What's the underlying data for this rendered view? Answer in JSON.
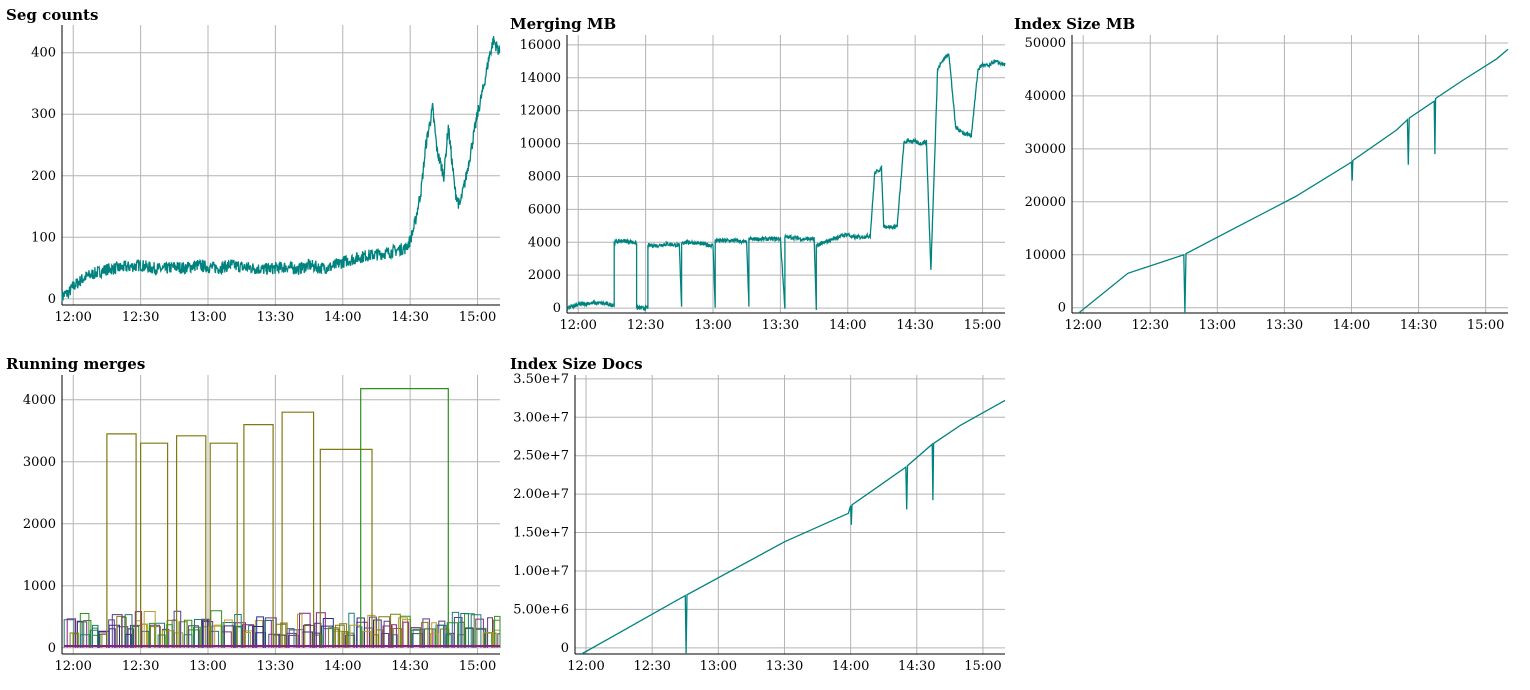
{
  "colors": {
    "series": "#00837f",
    "grid": "#b4b4b4",
    "axis": "#000000",
    "merge_palette": [
      "#7f7a10",
      "#2e8f1f",
      "#8a1f8a",
      "#2b2b8a",
      "#1e7a7a",
      "#b8a02a",
      "#5a3a8a"
    ]
  },
  "chart_data": [
    {
      "id": "seg-counts",
      "type": "line",
      "title": "Seg counts",
      "x_unit": "minutes since 12:00",
      "xlim": [
        -5,
        190
      ],
      "ylim": [
        -10,
        445
      ],
      "x_ticks": [
        {
          "v": 0,
          "label": "12:00"
        },
        {
          "v": 30,
          "label": "12:30"
        },
        {
          "v": 60,
          "label": "13:00"
        },
        {
          "v": 90,
          "label": "13:30"
        },
        {
          "v": 120,
          "label": "14:00"
        },
        {
          "v": 150,
          "label": "14:30"
        },
        {
          "v": 180,
          "label": "15:00"
        }
      ],
      "y_ticks": [
        {
          "v": 0,
          "label": "0"
        },
        {
          "v": 100,
          "label": "100"
        },
        {
          "v": 200,
          "label": "200"
        },
        {
          "v": 300,
          "label": "300"
        },
        {
          "v": 400,
          "label": "400"
        }
      ],
      "grid": true,
      "series": [
        {
          "x": [
            -5,
            -2,
            0,
            5,
            10,
            15,
            20,
            25,
            30,
            35,
            40,
            45,
            50,
            55,
            60,
            65,
            70,
            75,
            80,
            85,
            90,
            95,
            100,
            105,
            110,
            115,
            120,
            125,
            130,
            135,
            140,
            145,
            148,
            150,
            152,
            155,
            157,
            160,
            162,
            165,
            167,
            170,
            172,
            175,
            177,
            180,
            183,
            185,
            187,
            190
          ],
          "y": [
            5,
            10,
            20,
            35,
            42,
            48,
            50,
            52,
            55,
            50,
            48,
            52,
            50,
            55,
            52,
            50,
            55,
            52,
            50,
            48,
            50,
            52,
            48,
            55,
            50,
            52,
            60,
            65,
            70,
            72,
            75,
            80,
            82,
            95,
            120,
            180,
            250,
            310,
            240,
            200,
            280,
            175,
            150,
            200,
            240,
            300,
            350,
            390,
            420,
            400
          ],
          "noise": 10
        }
      ]
    },
    {
      "id": "merging-mb",
      "type": "line",
      "title": "Merging MB",
      "x_unit": "minutes since 12:00",
      "xlim": [
        -5,
        190
      ],
      "ylim": [
        -300,
        16600
      ],
      "x_ticks": [
        {
          "v": 0,
          "label": "12:00"
        },
        {
          "v": 30,
          "label": "12:30"
        },
        {
          "v": 60,
          "label": "13:00"
        },
        {
          "v": 90,
          "label": "13:30"
        },
        {
          "v": 120,
          "label": "14:00"
        },
        {
          "v": 150,
          "label": "14:30"
        },
        {
          "v": 180,
          "label": "15:00"
        }
      ],
      "y_ticks": [
        {
          "v": 0,
          "label": "0"
        },
        {
          "v": 2000,
          "label": "2000"
        },
        {
          "v": 4000,
          "label": "4000"
        },
        {
          "v": 6000,
          "label": "6000"
        },
        {
          "v": 8000,
          "label": "8000"
        },
        {
          "v": 10000,
          "label": "10000"
        },
        {
          "v": 12000,
          "label": "12000"
        },
        {
          "v": 14000,
          "label": "14000"
        },
        {
          "v": 16000,
          "label": "16000"
        }
      ],
      "grid": true,
      "series": [
        {
          "x": [
            -5,
            0,
            5,
            10,
            15,
            16,
            16,
            20,
            25,
            26,
            26,
            30,
            31,
            31,
            35,
            40,
            45,
            46,
            46,
            50,
            55,
            60,
            61,
            61,
            65,
            70,
            75,
            76,
            76,
            80,
            85,
            90,
            92,
            92,
            95,
            100,
            105,
            106,
            106,
            110,
            115,
            120,
            122,
            125,
            130,
            132,
            135,
            136,
            140,
            142,
            145,
            147,
            150,
            152,
            155,
            157,
            160,
            162,
            165,
            168,
            170,
            172,
            175,
            178,
            180,
            183,
            185,
            190
          ],
          "y": [
            0,
            200,
            300,
            300,
            200,
            200,
            4000,
            4100,
            4000,
            3900,
            0,
            0,
            0,
            3800,
            3800,
            3900,
            3800,
            0,
            4000,
            4000,
            3900,
            3800,
            0,
            4100,
            4100,
            4100,
            4000,
            0,
            4200,
            4200,
            4200,
            4200,
            0,
            4300,
            4300,
            4200,
            4200,
            0,
            3800,
            4000,
            4300,
            4500,
            4300,
            4300,
            4400,
            8200,
            8500,
            5000,
            4900,
            5000,
            10000,
            10200,
            10100,
            10000,
            10100,
            2300,
            14500,
            15000,
            15500,
            11000,
            10800,
            10600,
            10500,
            14500,
            14800,
            14700,
            15000,
            14800
          ],
          "noise": 120
        }
      ]
    },
    {
      "id": "index-size-mb",
      "type": "line",
      "title": "Index Size MB",
      "x_unit": "minutes since 12:00",
      "xlim": [
        -5,
        190
      ],
      "ylim": [
        -1000,
        51500
      ],
      "x_ticks": [
        {
          "v": 0,
          "label": "12:00"
        },
        {
          "v": 30,
          "label": "12:30"
        },
        {
          "v": 60,
          "label": "13:00"
        },
        {
          "v": 90,
          "label": "13:30"
        },
        {
          "v": 120,
          "label": "14:00"
        },
        {
          "v": 150,
          "label": "14:30"
        },
        {
          "v": 180,
          "label": "15:00"
        }
      ],
      "y_ticks": [
        {
          "v": 0,
          "label": "0"
        },
        {
          "v": 10000,
          "label": "10000"
        },
        {
          "v": 20000,
          "label": "20000"
        },
        {
          "v": 30000,
          "label": "30000"
        },
        {
          "v": 40000,
          "label": "40000"
        },
        {
          "v": 50000,
          "label": "50000"
        }
      ],
      "grid": true,
      "series": [
        {
          "x": [
            -2,
            20,
            45,
            45.5,
            46,
            70,
            95,
            120,
            120.3,
            120.6,
            140,
            145,
            145.4,
            145.8,
            157,
            157.3,
            157.6,
            170,
            185,
            190
          ],
          "y": [
            -1000,
            6500,
            10000,
            -1000,
            10200,
            15500,
            21000,
            27500,
            24000,
            27800,
            33500,
            35500,
            27000,
            35800,
            39000,
            29000,
            39500,
            43000,
            47000,
            48800
          ],
          "noise": 0
        }
      ]
    },
    {
      "id": "running-merges",
      "type": "line",
      "title": "Running merges",
      "x_unit": "minutes since 12:00",
      "xlim": [
        -5,
        190
      ],
      "ylim": [
        -100,
        4400
      ],
      "x_ticks": [
        {
          "v": 0,
          "label": "12:00"
        },
        {
          "v": 30,
          "label": "12:30"
        },
        {
          "v": 60,
          "label": "13:00"
        },
        {
          "v": 90,
          "label": "13:30"
        },
        {
          "v": 120,
          "label": "14:00"
        },
        {
          "v": 150,
          "label": "14:30"
        },
        {
          "v": 180,
          "label": "15:00"
        }
      ],
      "y_ticks": [
        {
          "v": 0,
          "label": "0"
        },
        {
          "v": 1000,
          "label": "1000"
        },
        {
          "v": 2000,
          "label": "2000"
        },
        {
          "v": 3000,
          "label": "3000"
        },
        {
          "v": 4000,
          "label": "4000"
        }
      ],
      "grid": true,
      "big_merges": [
        {
          "start": 15,
          "end": 28,
          "value": 3450
        },
        {
          "start": 30,
          "end": 42,
          "value": 3300
        },
        {
          "start": 46,
          "end": 59,
          "value": 3420
        },
        {
          "start": 61,
          "end": 73,
          "value": 3300
        },
        {
          "start": 76,
          "end": 89,
          "value": 3600
        },
        {
          "start": 93,
          "end": 107,
          "value": 3800
        },
        {
          "start": 110,
          "end": 133,
          "value": 3200
        },
        {
          "start": 128,
          "end": 167,
          "value": 4180
        }
      ],
      "small_merges_range": [
        200,
        650
      ]
    },
    {
      "id": "index-size-docs",
      "type": "line",
      "title": "Index Size Docs",
      "x_unit": "minutes since 12:00",
      "xlim": [
        -5,
        190
      ],
      "ylim": [
        -800000,
        35500000
      ],
      "x_ticks": [
        {
          "v": 0,
          "label": "12:00"
        },
        {
          "v": 30,
          "label": "12:30"
        },
        {
          "v": 60,
          "label": "13:00"
        },
        {
          "v": 90,
          "label": "13:30"
        },
        {
          "v": 120,
          "label": "14:00"
        },
        {
          "v": 150,
          "label": "14:30"
        },
        {
          "v": 180,
          "label": "15:00"
        }
      ],
      "y_ticks": [
        {
          "v": 0,
          "label": "0"
        },
        {
          "v": 5000000,
          "label": "5.00e+6"
        },
        {
          "v": 10000000,
          "label": "1.00e+7"
        },
        {
          "v": 15000000,
          "label": "1.50e+7"
        },
        {
          "v": 20000000,
          "label": "2.00e+7"
        },
        {
          "v": 25000000,
          "label": "2.50e+7"
        },
        {
          "v": 30000000,
          "label": "3.00e+7"
        },
        {
          "v": 35000000,
          "label": "3.50e+7"
        }
      ],
      "grid": true,
      "series": [
        {
          "x": [
            -2,
            45,
            45.4,
            45.8,
            90,
            119,
            120,
            120.3,
            120.6,
            145,
            145.4,
            145.8,
            157,
            157.3,
            157.6,
            170,
            190
          ],
          "y": [
            -800000,
            6800000,
            -800000,
            6900000,
            13800000,
            17500000,
            18500000,
            16000000,
            18600000,
            23500000,
            18000000,
            23700000,
            26500000,
            19200000,
            26600000,
            29000000,
            32200000
          ],
          "noise": 0
        }
      ]
    }
  ]
}
